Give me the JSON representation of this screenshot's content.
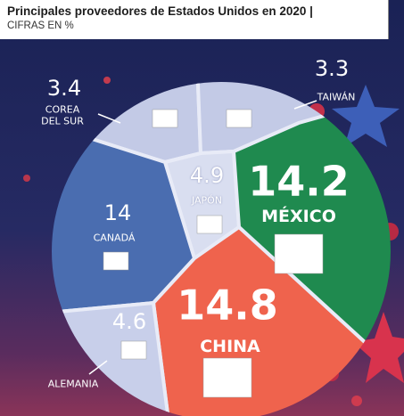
{
  "chart_data": {
    "type": "voronoi",
    "title": "Principales proveedores de Estados Unidos en 2020",
    "subtitle": "CIFRAS EN %",
    "categories": [
      "COREA DEL SUR",
      "TAIWÁN",
      "JAPÓN",
      "MÉXICO",
      "CANADÁ",
      "CHINA",
      "ALEMANIA"
    ],
    "values": [
      3.4,
      3.3,
      4.9,
      14.2,
      14.0,
      14.8,
      4.6
    ],
    "colors": [
      "#c3cae6",
      "#c3cae6",
      "#d9def0",
      "#1f8a4f",
      "#4a6db0",
      "#ef634d",
      "#c8cfea"
    ]
  }
}
